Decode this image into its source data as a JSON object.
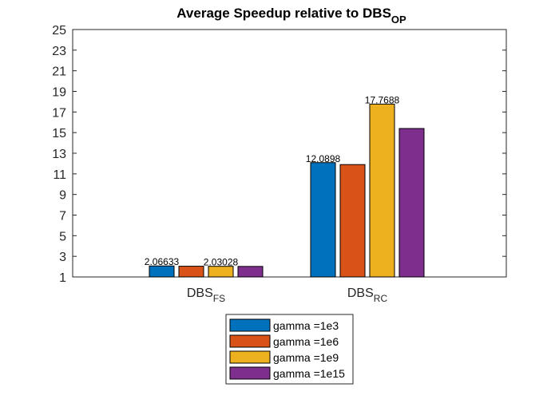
{
  "chart_data": {
    "type": "bar",
    "title": "Average Speedup relative to DBS",
    "title_subscript": "OP",
    "categories": [
      {
        "main": "DBS",
        "sub": "FS"
      },
      {
        "main": "DBS",
        "sub": "RC"
      }
    ],
    "series": [
      {
        "name": "gamma =1e3",
        "color": "#0072BD",
        "values": [
          2.06633,
          12.0898
        ]
      },
      {
        "name": "gamma =1e6",
        "color": "#D95319",
        "values": [
          2.04,
          11.9
        ]
      },
      {
        "name": "gamma =1e9",
        "color": "#EDB120",
        "values": [
          2.03028,
          17.7688
        ]
      },
      {
        "name": "gamma =1e15",
        "color": "#7E2F8E",
        "values": [
          2.02,
          15.4
        ]
      }
    ],
    "data_labels": [
      {
        "series": 0,
        "category": 0,
        "text": "2.06633"
      },
      {
        "series": 2,
        "category": 0,
        "text": "2.03028"
      },
      {
        "series": 0,
        "category": 1,
        "text": "12.0898"
      },
      {
        "series": 2,
        "category": 1,
        "text": "17.7688"
      }
    ],
    "ylim": [
      1,
      25
    ],
    "yticks": [
      1,
      3,
      5,
      7,
      9,
      11,
      13,
      15,
      17,
      19,
      21,
      23,
      25
    ],
    "xlabel": "",
    "ylabel": "",
    "grid": false,
    "legend_position": "bottom-center"
  }
}
